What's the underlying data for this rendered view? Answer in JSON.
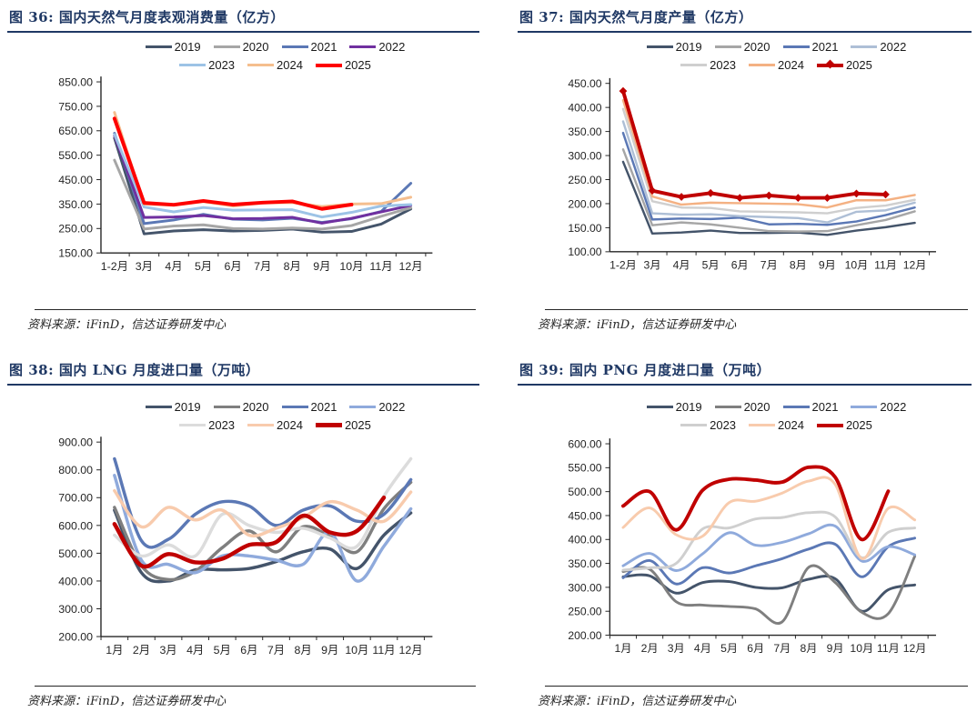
{
  "page": {
    "source_note": "资料来源：iFinD，信达证券研发中心"
  },
  "chart_data": [
    {
      "type": "line",
      "title": "图 36:  国内天然气月度表观消费量（亿方）",
      "source": "资料来源：iFinD，信达证券研发中心",
      "legend_position": "top",
      "grid": false,
      "smooth": false,
      "categories": [
        "1-2月",
        "3月",
        "4月",
        "5月",
        "6月",
        "7月",
        "8月",
        "9月",
        "10月",
        "11月",
        "12月"
      ],
      "y_axis": {
        "min": 150,
        "max": 850,
        "step": 100,
        "format": "0.00"
      },
      "series": [
        {
          "name": "2019",
          "color": "#44546A",
          "line_width": 3,
          "values": [
            620,
            228,
            240,
            245,
            240,
            242,
            248,
            235,
            238,
            268,
            330
          ]
        },
        {
          "name": "2020",
          "color": "#A6A6A6",
          "line_width": 3,
          "values": [
            530,
            248,
            260,
            265,
            250,
            248,
            252,
            248,
            262,
            300,
            335
          ]
        },
        {
          "name": "2021",
          "color": "#5B78B5",
          "line_width": 3,
          "values": [
            640,
            270,
            285,
            308,
            288,
            285,
            292,
            275,
            290,
            320,
            435
          ]
        },
        {
          "name": "2022",
          "color": "#7030A0",
          "line_width": 3,
          "values": [
            630,
            295,
            297,
            303,
            290,
            291,
            296,
            272,
            292,
            318,
            345
          ]
        },
        {
          "name": "2023",
          "color": "#9DC3E6",
          "line_width": 3,
          "values": [
            635,
            338,
            318,
            336,
            325,
            326,
            327,
            297,
            316,
            342,
            348
          ]
        },
        {
          "name": "2024",
          "color": "#F5BE8E",
          "line_width": 3,
          "values": [
            725,
            350,
            345,
            360,
            342,
            354,
            356,
            340,
            350,
            352,
            378
          ]
        },
        {
          "name": "2025",
          "color": "#FE0000",
          "line_width": 4,
          "values": [
            700,
            355,
            347,
            363,
            348,
            356,
            361,
            330,
            348,
            null,
            null
          ]
        }
      ]
    },
    {
      "type": "line",
      "title": "图 37:  国内天然气月度产量（亿方）",
      "source": "资料来源：iFinD，信达证券研发中心",
      "legend_position": "top",
      "grid": false,
      "smooth": false,
      "categories": [
        "1-2月",
        "3月",
        "4月",
        "5月",
        "6月",
        "7月",
        "8月",
        "9月",
        "10月",
        "11月",
        "12月"
      ],
      "y_axis": {
        "min": 100,
        "max": 450,
        "step": 50,
        "format": "0.00"
      },
      "series": [
        {
          "name": "2019",
          "color": "#44546A",
          "line_width": 2.5,
          "values": [
            287,
            138,
            140,
            144,
            139,
            139,
            140,
            135,
            144,
            151,
            160
          ]
        },
        {
          "name": "2020",
          "color": "#A6A6A6",
          "line_width": 2.5,
          "values": [
            313,
            155,
            161,
            157,
            150,
            143,
            142,
            143,
            155,
            166,
            184
          ]
        },
        {
          "name": "2021",
          "color": "#5B78B5",
          "line_width": 2.5,
          "values": [
            347,
            167,
            169,
            168,
            171,
            157,
            158,
            156,
            163,
            176,
            192
          ]
        },
        {
          "name": "2022",
          "color": "#AEBFD6",
          "line_width": 2.5,
          "values": [
            371,
            180,
            177,
            178,
            174,
            172,
            170,
            161,
            183,
            186,
            202
          ]
        },
        {
          "name": "2023",
          "color": "#CFCFCF",
          "line_width": 2.5,
          "values": [
            397,
            205,
            192,
            191,
            184,
            183,
            182,
            180,
            191,
            196,
            208
          ]
        },
        {
          "name": "2024",
          "color": "#F4B183",
          "line_width": 2.5,
          "values": [
            415,
            215,
            198,
            202,
            201,
            200,
            199,
            192,
            207,
            207,
            218
          ]
        },
        {
          "name": "2025",
          "color": "#C00000",
          "line_width": 4,
          "marker": "diamond",
          "values": [
            434,
            227,
            214,
            222,
            212,
            217,
            212,
            212,
            221,
            219,
            null
          ]
        }
      ]
    },
    {
      "type": "line",
      "title": "图 38:  国内 LNG 月度进口量（万吨）",
      "source": "资料来源：iFinD，信达证券研发中心",
      "legend_position": "top",
      "grid": false,
      "smooth": true,
      "categories": [
        "1月",
        "2月",
        "3月",
        "4月",
        "5月",
        "6月",
        "7月",
        "8月",
        "9月",
        "10月",
        "11月",
        "12月"
      ],
      "y_axis": {
        "min": 200,
        "max": 900,
        "step": 100,
        "format": "0.00"
      },
      "series": [
        {
          "name": "2019",
          "color": "#44546A",
          "line_width": 3.5,
          "values": [
            655,
            430,
            400,
            440,
            440,
            445,
            470,
            505,
            515,
            445,
            565,
            645
          ]
        },
        {
          "name": "2020",
          "color": "#7F7F7F",
          "line_width": 3.5,
          "values": [
            665,
            455,
            405,
            435,
            520,
            580,
            505,
            595,
            560,
            505,
            660,
            755
          ]
        },
        {
          "name": "2021",
          "color": "#5B78B5",
          "line_width": 3.5,
          "values": [
            840,
            545,
            550,
            640,
            685,
            670,
            600,
            655,
            670,
            615,
            640,
            765
          ]
        },
        {
          "name": "2022",
          "color": "#8FAADC",
          "line_width": 3.5,
          "values": [
            780,
            475,
            460,
            430,
            490,
            490,
            475,
            460,
            575,
            400,
            525,
            660
          ]
        },
        {
          "name": "2023",
          "color": "#DCDCDC",
          "line_width": 3.5,
          "values": [
            565,
            490,
            530,
            490,
            640,
            600,
            575,
            590,
            555,
            525,
            705,
            840
          ]
        },
        {
          "name": "2024",
          "color": "#F8CBAD",
          "line_width": 3.5,
          "values": [
            725,
            595,
            665,
            620,
            655,
            565,
            590,
            628,
            685,
            655,
            615,
            720
          ]
        },
        {
          "name": "2025",
          "color": "#C00000",
          "line_width": 4.5,
          "values": [
            605,
            455,
            497,
            467,
            480,
            530,
            540,
            635,
            575,
            580,
            700,
            null
          ]
        }
      ]
    },
    {
      "type": "line",
      "title": "图 39:  国内 PNG 月度进口量（万吨）",
      "source": "资料来源：iFinD，信达证券研发中心",
      "legend_position": "top",
      "grid": false,
      "smooth": true,
      "categories": [
        "1月",
        "2月",
        "3月",
        "4月",
        "5月",
        "6月",
        "7月",
        "8月",
        "9月",
        "10月",
        "11月",
        "12月"
      ],
      "y_axis": {
        "min": 200,
        "max": 600,
        "step": 50,
        "format": "0.00"
      },
      "series": [
        {
          "name": "2019",
          "color": "#44546A",
          "line_width": 3,
          "values": [
            322,
            324,
            288,
            310,
            312,
            300,
            299,
            317,
            318,
            250,
            295,
            305
          ]
        },
        {
          "name": "2020",
          "color": "#7F7F7F",
          "line_width": 3,
          "values": [
            333,
            338,
            270,
            263,
            260,
            255,
            228,
            342,
            310,
            248,
            245,
            365
          ]
        },
        {
          "name": "2021",
          "color": "#5B78B5",
          "line_width": 3,
          "values": [
            320,
            356,
            307,
            341,
            330,
            345,
            360,
            380,
            390,
            322,
            385,
            403
          ]
        },
        {
          "name": "2022",
          "color": "#8FAADC",
          "line_width": 3,
          "values": [
            345,
            371,
            335,
            370,
            414,
            388,
            394,
            412,
            428,
            355,
            385,
            368
          ]
        },
        {
          "name": "2023",
          "color": "#CFCFCF",
          "line_width": 3,
          "values": [
            336,
            341,
            350,
            422,
            424,
            443,
            446,
            456,
            447,
            362,
            415,
            424
          ]
        },
        {
          "name": "2024",
          "color": "#F8CBAD",
          "line_width": 3,
          "values": [
            425,
            466,
            410,
            407,
            477,
            480,
            497,
            522,
            515,
            360,
            465,
            441
          ]
        },
        {
          "name": "2025",
          "color": "#C00000",
          "line_width": 4,
          "values": [
            470,
            500,
            420,
            503,
            526,
            524,
            520,
            551,
            530,
            400,
            501,
            null
          ]
        }
      ]
    }
  ]
}
